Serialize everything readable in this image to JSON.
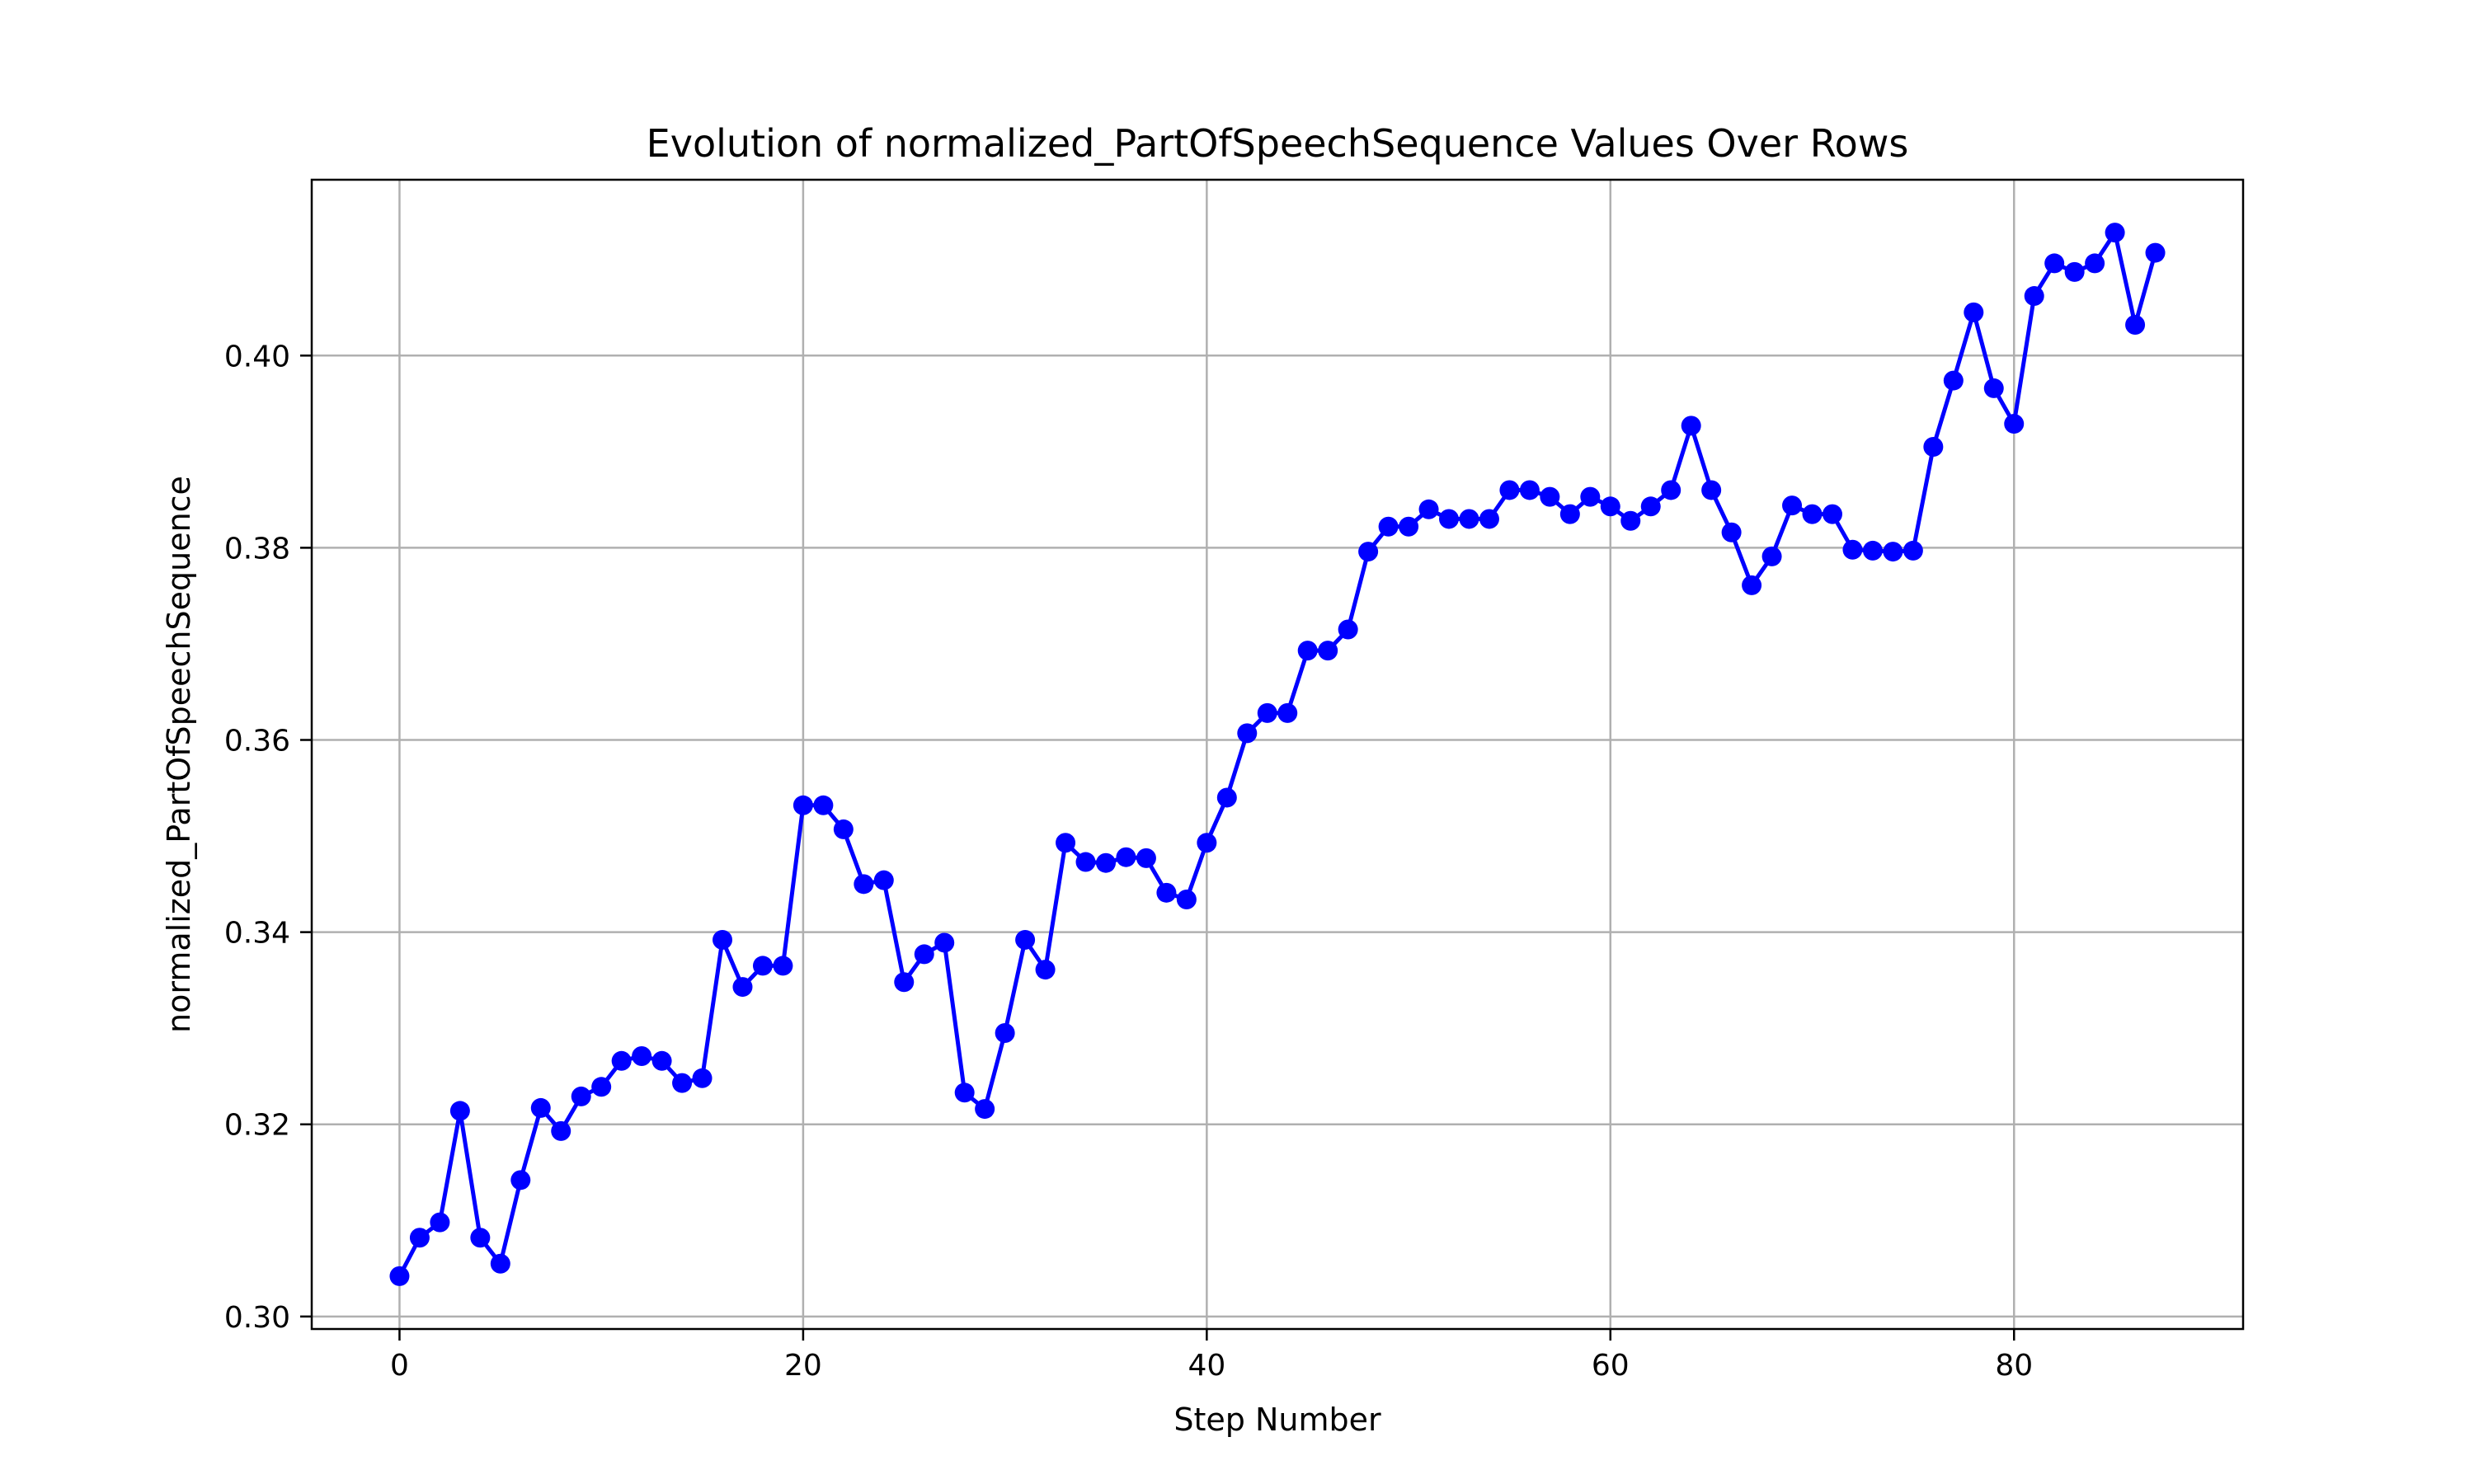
{
  "chart_data": {
    "type": "line",
    "title": "Evolution of normalized_PartOfSpeechSequence Values Over Rows",
    "xlabel": "Step Number",
    "ylabel": "normalized_PartOfSpeechSequence",
    "xlim": [
      -4.35,
      91.35
    ],
    "ylim": [
      0.2987,
      0.4183
    ],
    "xticks": [
      0,
      20,
      40,
      60,
      80
    ],
    "xtick_labels": [
      "0",
      "20",
      "40",
      "60",
      "80"
    ],
    "yticks": [
      0.3,
      0.32,
      0.34,
      0.36,
      0.38,
      0.4
    ],
    "ytick_labels": [
      "0.30",
      "0.32",
      "0.34",
      "0.36",
      "0.38",
      "0.40"
    ],
    "grid": true,
    "color": "#0000ff",
    "marker": "circle",
    "series": [
      {
        "x": [
          0,
          1,
          2,
          3,
          4,
          5,
          6,
          7,
          8,
          9,
          10,
          11,
          12,
          13,
          14,
          15,
          16,
          17,
          18,
          19,
          20,
          21,
          22,
          23,
          24,
          25,
          26,
          27,
          28,
          29,
          30,
          31,
          32,
          33,
          34,
          35,
          36,
          37,
          38,
          39,
          40,
          41,
          42,
          43,
          44,
          45,
          46,
          47,
          48,
          49,
          50,
          51,
          52,
          53,
          54,
          55,
          56,
          57,
          58,
          59,
          60,
          61,
          62,
          63,
          64,
          65,
          66,
          67,
          68,
          69,
          70,
          71,
          72,
          73,
          74,
          75,
          76,
          77,
          78,
          79,
          80,
          81,
          82,
          83,
          84,
          85,
          86,
          87
        ],
        "values": [
          0.3042,
          0.3082,
          0.3098,
          0.3214,
          0.3082,
          0.3055,
          0.3142,
          0.3217,
          0.3193,
          0.3229,
          0.3239,
          0.3266,
          0.3271,
          0.3266,
          0.3243,
          0.3248,
          0.3392,
          0.3343,
          0.3365,
          0.3365,
          0.3532,
          0.3532,
          0.3507,
          0.345,
          0.3454,
          0.3348,
          0.3377,
          0.3389,
          0.3233,
          0.3216,
          0.3295,
          0.3392,
          0.3361,
          0.3493,
          0.3473,
          0.3472,
          0.3478,
          0.3477,
          0.3441,
          0.3434,
          0.3493,
          0.354,
          0.3607,
          0.3628,
          0.3628,
          0.3693,
          0.3693,
          0.3715,
          0.3796,
          0.3822,
          0.3822,
          0.384,
          0.383,
          0.383,
          0.383,
          0.386,
          0.386,
          0.3853,
          0.3835,
          0.3853,
          0.3843,
          0.3828,
          0.3843,
          0.386,
          0.3927,
          0.386,
          0.3816,
          0.3761,
          0.3791,
          0.3844,
          0.3835,
          0.3835,
          0.3798,
          0.3797,
          0.3796,
          0.3797,
          0.3905,
          0.3974,
          0.4045,
          0.3966,
          0.3929,
          0.4062,
          0.4096,
          0.4087,
          0.4096,
          0.4128,
          0.4032,
          0.4107
        ]
      }
    ]
  }
}
